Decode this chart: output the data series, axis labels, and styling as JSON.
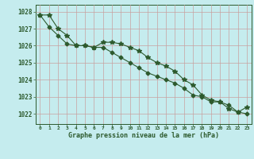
{
  "background_color": "#c5ecee",
  "grid_color": "#c8a0a0",
  "line_color": "#2d5a2d",
  "title": "Graphe pression niveau de la mer (hPa)",
  "ylim": [
    1021.4,
    1028.4
  ],
  "yticks": [
    1022,
    1023,
    1024,
    1025,
    1026,
    1027,
    1028
  ],
  "xlim": [
    -0.5,
    23.5
  ],
  "xticks": [
    0,
    1,
    2,
    3,
    4,
    5,
    6,
    7,
    8,
    9,
    10,
    11,
    12,
    13,
    14,
    15,
    16,
    17,
    18,
    19,
    20,
    21,
    22,
    23
  ],
  "line1_x": [
    0,
    1,
    2,
    3,
    4,
    5,
    6,
    7,
    8,
    9,
    10,
    11,
    12,
    13,
    14,
    15,
    16,
    17,
    18,
    19,
    20,
    21,
    22,
    23
  ],
  "line1_y": [
    1027.8,
    1027.8,
    1027.0,
    1026.6,
    1026.0,
    1026.0,
    1025.9,
    1026.2,
    1026.2,
    1026.1,
    1025.9,
    1025.7,
    1025.3,
    1025.0,
    1024.8,
    1024.5,
    1024.0,
    1023.7,
    1023.1,
    1022.8,
    1022.7,
    1022.3,
    1022.1,
    1022.4
  ],
  "line2_x": [
    0,
    1,
    2,
    3,
    4,
    5,
    6,
    7,
    8,
    9,
    10,
    11,
    12,
    13,
    14,
    15,
    16,
    17,
    18,
    19,
    20,
    21,
    22,
    23
  ],
  "line2_y": [
    1027.8,
    1027.1,
    1026.6,
    1026.1,
    1026.0,
    1026.0,
    1025.9,
    1025.9,
    1025.6,
    1025.3,
    1025.0,
    1024.7,
    1024.4,
    1024.2,
    1024.0,
    1023.8,
    1023.5,
    1023.1,
    1023.0,
    1022.7,
    1022.7,
    1022.5,
    1022.1,
    1022.0
  ],
  "marker_size": 3,
  "line_width": 0.8
}
